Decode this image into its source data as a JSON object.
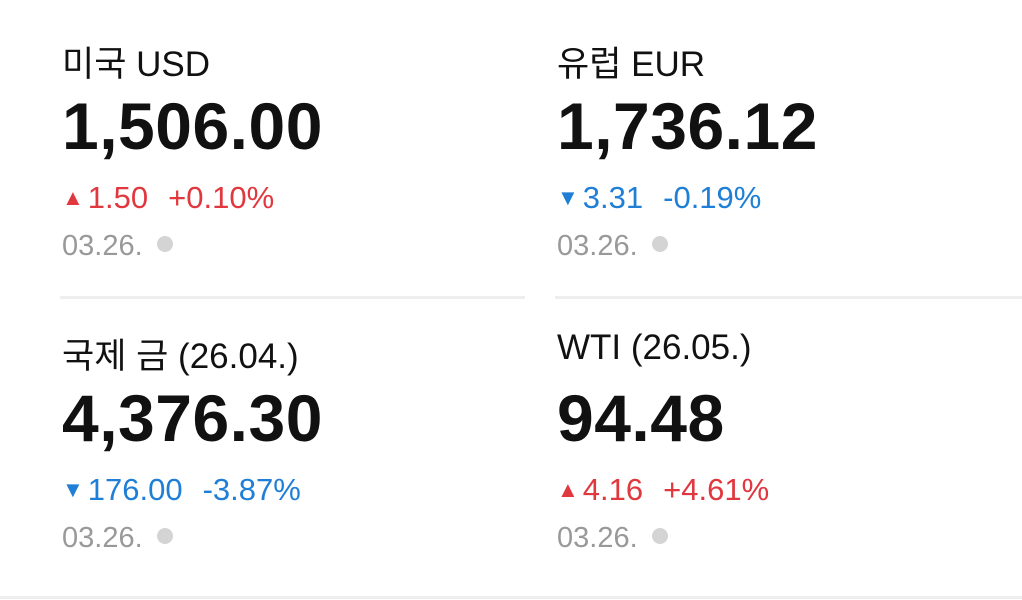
{
  "items": [
    {
      "name": "미국 USD",
      "price": "1,506.00",
      "arrow": "▲",
      "change": "1.50",
      "change_pct": "+0.10%",
      "date": "03.26."
    },
    {
      "name": "유럽 EUR",
      "price": "1,736.12",
      "arrow": "▼",
      "change": "3.31",
      "change_pct": "-0.19%",
      "date": "03.26."
    },
    {
      "name": "국제 금 (26.04.)",
      "price": "4,376.30",
      "arrow": "▼",
      "change": "176.00",
      "change_pct": "-3.87%",
      "date": "03.26."
    },
    {
      "name": "WTI (26.05.)",
      "price": "94.48",
      "arrow": "▲",
      "change": "4.16",
      "change_pct": "+4.61%",
      "date": "03.26."
    }
  ]
}
